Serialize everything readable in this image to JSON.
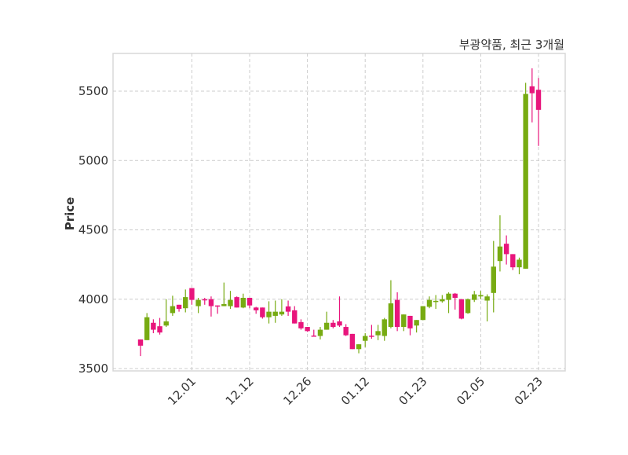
{
  "chart_data": {
    "type": "candlestick",
    "title": "부광약품, 최근 3개월",
    "xlabel": "",
    "ylabel": "Price",
    "ylim": [
      3480,
      5770
    ],
    "yticks": [
      3500,
      4000,
      4500,
      5000,
      5500
    ],
    "xticks": [
      {
        "index": 8,
        "label": "12.01"
      },
      {
        "index": 17,
        "label": "12.12"
      },
      {
        "index": 26,
        "label": "12.26"
      },
      {
        "index": 35,
        "label": "01.12"
      },
      {
        "index": 44,
        "label": "01.23"
      },
      {
        "index": 53,
        "label": "02.05"
      },
      {
        "index": 62,
        "label": "02.23"
      }
    ],
    "grid": true,
    "colors": {
      "up": "#77ab12",
      "down": "#e8157c",
      "grid": "#cccccc",
      "frame": "#d8d8d8"
    },
    "ohlc": [
      [
        3710,
        3710,
        3590,
        3665
      ],
      [
        3705,
        3900,
        3705,
        3870
      ],
      [
        3830,
        3855,
        3755,
        3780
      ],
      [
        3805,
        3865,
        3745,
        3760
      ],
      [
        3810,
        4000,
        3800,
        3840
      ],
      [
        3900,
        4025,
        3880,
        3950
      ],
      [
        3960,
        3960,
        3910,
        3930
      ],
      [
        3935,
        4070,
        3905,
        4015
      ],
      [
        4080,
        4080,
        3960,
        3995
      ],
      [
        3950,
        4010,
        3900,
        3995
      ],
      [
        4000,
        4010,
        3960,
        3995
      ],
      [
        4000,
        4020,
        3875,
        3950
      ],
      [
        3955,
        3955,
        3895,
        3950
      ],
      [
        3950,
        4120,
        3950,
        3965
      ],
      [
        3950,
        4060,
        3930,
        3995
      ],
      [
        4015,
        4020,
        3940,
        3940
      ],
      [
        3940,
        4040,
        3935,
        4010
      ],
      [
        4010,
        4010,
        3935,
        3955
      ],
      [
        3940,
        3945,
        3895,
        3920
      ],
      [
        3940,
        3940,
        3860,
        3870
      ],
      [
        3870,
        3985,
        3825,
        3910
      ],
      [
        3880,
        3990,
        3830,
        3910
      ],
      [
        3890,
        4000,
        3880,
        3910
      ],
      [
        3948,
        3990,
        3880,
        3910
      ],
      [
        3920,
        3950,
        3825,
        3825
      ],
      [
        3835,
        3855,
        3780,
        3790
      ],
      [
        3800,
        3800,
        3765,
        3770
      ],
      [
        3738,
        3780,
        3730,
        3735
      ],
      [
        3735,
        3800,
        3710,
        3780
      ],
      [
        3780,
        3910,
        3780,
        3830
      ],
      [
        3830,
        3850,
        3790,
        3800
      ],
      [
        3840,
        4020,
        3800,
        3810
      ],
      [
        3800,
        3820,
        3735,
        3740
      ],
      [
        3750,
        3750,
        3640,
        3640
      ],
      [
        3640,
        3675,
        3610,
        3675
      ],
      [
        3700,
        3755,
        3655,
        3735
      ],
      [
        3737,
        3815,
        3715,
        3735
      ],
      [
        3740,
        3815,
        3705,
        3770
      ],
      [
        3735,
        3865,
        3700,
        3855
      ],
      [
        3800,
        4137,
        3790,
        3970
      ],
      [
        3995,
        4050,
        3770,
        3800
      ],
      [
        3800,
        3890,
        3770,
        3890
      ],
      [
        3880,
        3880,
        3740,
        3790
      ],
      [
        3810,
        3850,
        3760,
        3850
      ],
      [
        3850,
        3950,
        3850,
        3950
      ],
      [
        3945,
        4020,
        3935,
        3995
      ],
      [
        3985,
        4030,
        3930,
        3988
      ],
      [
        3985,
        4030,
        3975,
        4000
      ],
      [
        3995,
        4050,
        3900,
        4040
      ],
      [
        4040,
        4045,
        3925,
        4010
      ],
      [
        4000,
        4000,
        3855,
        3860
      ],
      [
        3900,
        4005,
        3895,
        4000
      ],
      [
        3995,
        4060,
        3980,
        4035
      ],
      [
        4020,
        4060,
        4000,
        4030
      ],
      [
        3990,
        4035,
        3840,
        4020
      ],
      [
        4045,
        4420,
        3905,
        4235
      ],
      [
        4275,
        4605,
        4200,
        4380
      ],
      [
        4400,
        4460,
        4250,
        4325
      ],
      [
        4325,
        4325,
        4210,
        4230
      ],
      [
        4230,
        4300,
        4180,
        4285
      ],
      [
        4220,
        5560,
        4220,
        5480
      ],
      [
        5535,
        5665,
        5275,
        5485
      ],
      [
        5510,
        5595,
        5105,
        5365
      ]
    ]
  }
}
